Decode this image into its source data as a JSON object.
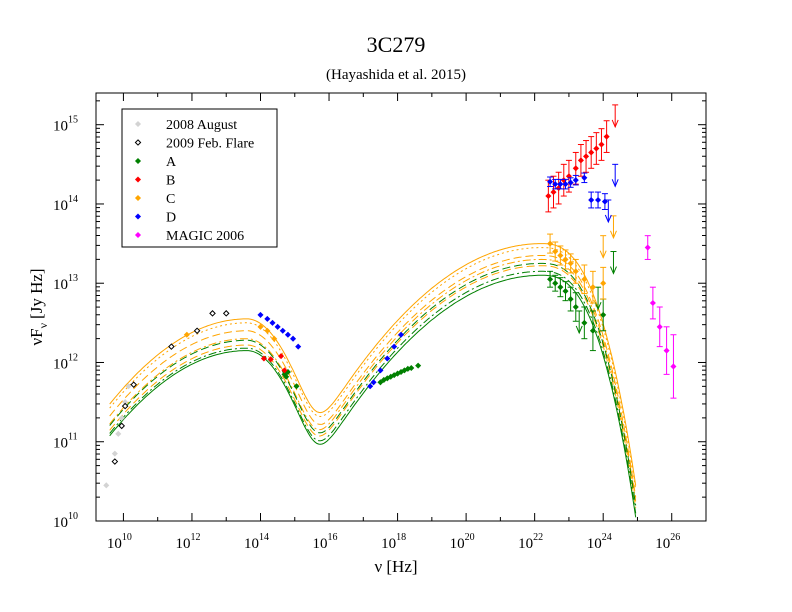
{
  "chart_data": {
    "type": "scatter",
    "title": "3C279",
    "subtitle": "(Hayashida et al. 2015)",
    "xlabel": "ν [Hz]",
    "ylabel_main": "νF",
    "ylabel_sub": "ν",
    "ylabel_unit": "[Jy Hz]",
    "xscale": "log",
    "yscale": "log",
    "xlim_log10": [
      9.2,
      27.0
    ],
    "ylim_log10": [
      10,
      15.4
    ],
    "x_ticks": [
      {
        "exp": 10,
        "base": "10",
        "sup": "10"
      },
      {
        "exp": 12,
        "base": "10",
        "sup": "12"
      },
      {
        "exp": 14,
        "base": "10",
        "sup": "14"
      },
      {
        "exp": 16,
        "base": "10",
        "sup": "16"
      },
      {
        "exp": 18,
        "base": "10",
        "sup": "18"
      },
      {
        "exp": 20,
        "base": "10",
        "sup": "20"
      },
      {
        "exp": 22,
        "base": "10",
        "sup": "22"
      },
      {
        "exp": 24,
        "base": "10",
        "sup": "24"
      },
      {
        "exp": 26,
        "base": "10",
        "sup": "26"
      }
    ],
    "y_ticks": [
      {
        "exp": 10,
        "base": "10",
        "sup": "10"
      },
      {
        "exp": 11,
        "base": "10",
        "sup": "11"
      },
      {
        "exp": 12,
        "base": "10",
        "sup": "12"
      },
      {
        "exp": 13,
        "base": "10",
        "sup": "13"
      },
      {
        "exp": 14,
        "base": "10",
        "sup": "14"
      },
      {
        "exp": 15,
        "base": "10",
        "sup": "15"
      }
    ],
    "legend": {
      "placement": "top-left",
      "entries": [
        {
          "label": "2008 August",
          "color": "#d3d3d3"
        },
        {
          "label": "2009 Feb. Flare",
          "color": "#000000"
        },
        {
          "label": "A",
          "color": "#008000"
        },
        {
          "label": "B",
          "color": "#ff0000"
        },
        {
          "label": "C",
          "color": "#ffa500"
        },
        {
          "label": "D",
          "color": "#0000ff"
        },
        {
          "label": "MAGIC 2006",
          "color": "#ff00ff"
        }
      ]
    },
    "series": [
      {
        "name": "2008 August",
        "color": "#d3d3d3",
        "points": [
          [
            9.5,
            10.45
          ],
          [
            9.75,
            10.85
          ],
          [
            9.85,
            11.1
          ],
          [
            9.95,
            11.3
          ],
          [
            10.05,
            11.5
          ],
          [
            10.15,
            11.7
          ]
        ]
      },
      {
        "name": "2009 Feb. Flare",
        "color": "#000000",
        "points": [
          [
            9.75,
            10.75
          ],
          [
            9.95,
            11.2
          ],
          [
            10.05,
            11.45
          ],
          [
            10.3,
            11.72
          ],
          [
            11.4,
            12.2
          ],
          [
            12.15,
            12.4
          ],
          [
            12.6,
            12.62
          ],
          [
            13.0,
            12.62
          ]
        ]
      },
      {
        "name": "A",
        "color": "#008000",
        "points": [
          [
            14.7,
            11.85
          ],
          [
            14.75,
            11.82
          ],
          [
            14.8,
            11.88
          ],
          [
            15.05,
            11.7
          ],
          [
            17.5,
            11.75
          ],
          [
            17.6,
            11.78
          ],
          [
            17.7,
            11.8
          ],
          [
            17.8,
            11.82
          ],
          [
            17.9,
            11.84
          ],
          [
            18.0,
            11.86
          ],
          [
            18.1,
            11.88
          ],
          [
            18.2,
            11.9
          ],
          [
            18.3,
            11.92
          ],
          [
            18.4,
            11.93
          ],
          [
            18.6,
            11.96
          ]
        ],
        "errpoints": [
          [
            22.45,
            13.05,
            0.1
          ],
          [
            22.6,
            13.0,
            0.1
          ],
          [
            22.75,
            12.95,
            0.12
          ],
          [
            22.9,
            12.9,
            0.12
          ],
          [
            23.05,
            12.8,
            0.15
          ],
          [
            23.2,
            12.7,
            0.18
          ],
          [
            23.45,
            12.5,
            0.2
          ],
          [
            23.7,
            12.4,
            0.25
          ],
          [
            24.0,
            12.6,
            0.2
          ]
        ],
        "upperlimits": [
          [
            23.3,
            12.65
          ],
          [
            23.85,
            12.95
          ],
          [
            24.3,
            13.4
          ]
        ]
      },
      {
        "name": "B",
        "color": "#ff0000",
        "points": [
          [
            14.1,
            12.05
          ],
          [
            14.3,
            12.04
          ],
          [
            14.6,
            12.08
          ],
          [
            14.7,
            11.9
          ]
        ],
        "errpoints": [
          [
            22.4,
            14.1,
            0.2
          ],
          [
            22.55,
            14.15,
            0.2
          ],
          [
            22.7,
            14.2,
            0.2
          ],
          [
            22.85,
            14.3,
            0.2
          ],
          [
            23.0,
            14.35,
            0.2
          ],
          [
            23.2,
            14.45,
            0.2
          ],
          [
            23.35,
            14.55,
            0.2
          ],
          [
            23.5,
            14.6,
            0.2
          ],
          [
            23.65,
            14.65,
            0.2
          ],
          [
            23.8,
            14.7,
            0.2
          ],
          [
            23.95,
            14.75,
            0.2
          ],
          [
            24.1,
            14.85,
            0.2
          ]
        ],
        "upperlimits": [
          [
            24.35,
            15.25
          ]
        ]
      },
      {
        "name": "C",
        "color": "#ffa500",
        "points": [
          [
            11.85,
            12.35
          ],
          [
            14.0,
            12.45
          ],
          [
            14.2,
            12.4
          ],
          [
            14.4,
            12.3
          ]
        ],
        "errpoints": [
          [
            22.45,
            13.5,
            0.12
          ],
          [
            22.6,
            13.4,
            0.12
          ],
          [
            22.75,
            13.35,
            0.12
          ],
          [
            22.9,
            13.3,
            0.12
          ],
          [
            23.05,
            13.25,
            0.12
          ],
          [
            23.2,
            13.15,
            0.15
          ],
          [
            23.45,
            13.05,
            0.18
          ],
          [
            23.7,
            12.95,
            0.2
          ],
          [
            24.0,
            13.0,
            0.2
          ]
        ],
        "upperlimits": [
          [
            24.0,
            13.6
          ],
          [
            24.3,
            13.85
          ]
        ]
      },
      {
        "name": "D",
        "color": "#0000ff",
        "points": [
          [
            14.0,
            12.6
          ],
          [
            14.2,
            12.55
          ],
          [
            14.35,
            12.5
          ],
          [
            14.5,
            12.45
          ],
          [
            14.65,
            12.4
          ],
          [
            14.8,
            12.35
          ],
          [
            14.95,
            12.3
          ],
          [
            15.1,
            12.2
          ],
          [
            17.2,
            11.7
          ],
          [
            17.3,
            11.75
          ],
          [
            17.5,
            11.9
          ],
          [
            17.7,
            12.05
          ],
          [
            17.9,
            12.2
          ],
          [
            18.1,
            12.35
          ]
        ],
        "errpoints": [
          [
            22.45,
            14.28,
            0.06
          ],
          [
            22.6,
            14.25,
            0.06
          ],
          [
            22.75,
            14.25,
            0.06
          ],
          [
            22.9,
            14.25,
            0.06
          ],
          [
            23.05,
            14.27,
            0.06
          ],
          [
            23.2,
            14.3,
            0.06
          ],
          [
            23.45,
            14.33,
            0.06
          ],
          [
            23.65,
            14.05,
            0.1
          ],
          [
            23.85,
            14.05,
            0.1
          ],
          [
            24.05,
            14.03,
            0.1
          ]
        ],
        "upperlimits": [
          [
            24.35,
            14.5
          ],
          [
            24.15,
            14.05
          ]
        ]
      },
      {
        "name": "MAGIC 2006",
        "color": "#ff00ff",
        "errpoints": [
          [
            25.3,
            13.45,
            0.15
          ],
          [
            25.45,
            12.75,
            0.2
          ],
          [
            25.65,
            12.45,
            0.25
          ],
          [
            25.85,
            12.15,
            0.3
          ],
          [
            26.05,
            11.95,
            0.4
          ]
        ]
      }
    ],
    "model_curves": [
      {
        "color": "#ffa500",
        "style": "solid",
        "sync_peak": 12.55,
        "ic_peak": 13.5
      },
      {
        "color": "#ffa500",
        "style": "dotted",
        "sync_peak": 12.5,
        "ic_peak": 13.45
      },
      {
        "color": "#ffa500",
        "style": "dashed",
        "sync_peak": 12.4,
        "ic_peak": 13.35
      },
      {
        "color": "#ffa500",
        "style": "dashdot",
        "sync_peak": 12.3,
        "ic_peak": 13.3
      },
      {
        "color": "#ffa500",
        "style": "dashed",
        "sync_peak": 12.22,
        "ic_peak": 13.22
      },
      {
        "color": "#008000",
        "style": "dashed",
        "sync_peak": 12.28,
        "ic_peak": 13.25
      },
      {
        "color": "#008000",
        "style": "dashdot",
        "sync_peak": 12.18,
        "ic_peak": 13.15
      },
      {
        "color": "#008000",
        "style": "solid",
        "sync_peak": 12.15,
        "ic_peak": 13.1
      }
    ]
  }
}
